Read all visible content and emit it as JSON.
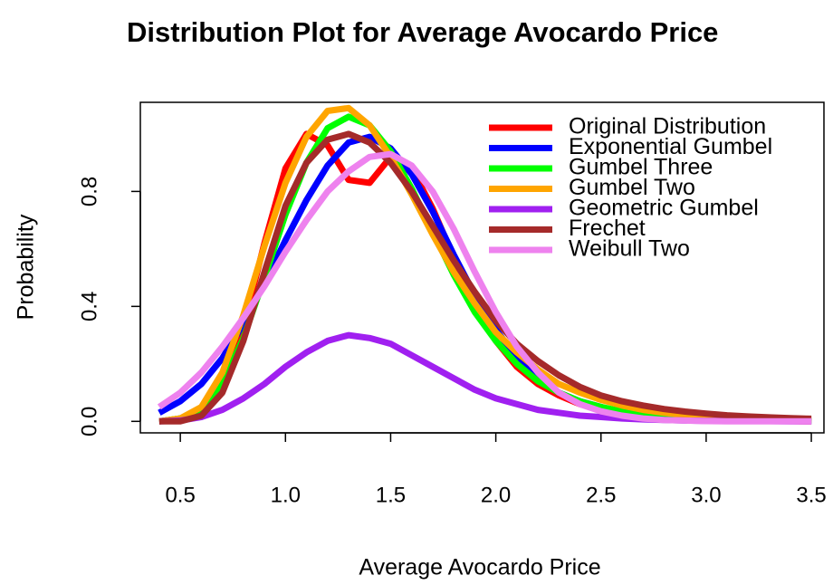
{
  "chart_data": {
    "type": "line",
    "title": "Distribution Plot for Average Avocardo Price",
    "x_label": "Average Avocardo Price",
    "y_label": "Probability",
    "x": [
      0.4,
      0.5,
      0.6,
      0.7,
      0.8,
      0.9,
      1.0,
      1.1,
      1.2,
      1.3,
      1.4,
      1.5,
      1.6,
      1.7,
      1.8,
      1.9,
      2.0,
      2.1,
      2.2,
      2.3,
      2.4,
      2.5,
      2.6,
      2.7,
      2.8,
      2.9,
      3.0,
      3.1,
      3.2,
      3.3,
      3.4,
      3.5
    ],
    "series": [
      {
        "name": "Original Distribution",
        "color": "#ff0000",
        "values": [
          0,
          0.01,
          0.03,
          0.12,
          0.33,
          0.62,
          0.88,
          1.0,
          0.96,
          0.84,
          0.83,
          0.92,
          0.88,
          0.74,
          0.57,
          0.41,
          0.28,
          0.19,
          0.13,
          0.09,
          0.06,
          0.04,
          0.03,
          0.02,
          0.015,
          0.01,
          0.01,
          0.005,
          0.003,
          0.002,
          0.001,
          0
        ]
      },
      {
        "name": "Exponential Gumbel",
        "color": "#0000ff",
        "values": [
          0.03,
          0.07,
          0.13,
          0.22,
          0.34,
          0.48,
          0.63,
          0.77,
          0.89,
          0.97,
          0.99,
          0.95,
          0.86,
          0.73,
          0.58,
          0.44,
          0.32,
          0.22,
          0.15,
          0.1,
          0.07,
          0.05,
          0.03,
          0.02,
          0.015,
          0.01,
          0.007,
          0.005,
          0.003,
          0.002,
          0.001,
          0.001
        ]
      },
      {
        "name": "Gumbel Three",
        "color": "#00ff00",
        "values": [
          0,
          0.01,
          0.04,
          0.13,
          0.29,
          0.5,
          0.72,
          0.9,
          1.02,
          1.06,
          1.03,
          0.94,
          0.81,
          0.66,
          0.51,
          0.38,
          0.28,
          0.2,
          0.14,
          0.1,
          0.07,
          0.05,
          0.035,
          0.025,
          0.018,
          0.012,
          0.009,
          0.006,
          0.004,
          0.003,
          0.002,
          0.001
        ]
      },
      {
        "name": "Gumbel Two",
        "color": "#ffa500",
        "values": [
          0,
          0.01,
          0.05,
          0.17,
          0.37,
          0.61,
          0.83,
          0.99,
          1.08,
          1.09,
          1.03,
          0.92,
          0.79,
          0.65,
          0.52,
          0.41,
          0.31,
          0.24,
          0.18,
          0.13,
          0.1,
          0.075,
          0.055,
          0.04,
          0.03,
          0.023,
          0.017,
          0.013,
          0.01,
          0.007,
          0.005,
          0.004
        ]
      },
      {
        "name": "Geometric Gumbel",
        "color": "#a020f0",
        "values": [
          0,
          0.003,
          0.015,
          0.04,
          0.08,
          0.13,
          0.19,
          0.24,
          0.28,
          0.3,
          0.29,
          0.27,
          0.23,
          0.19,
          0.15,
          0.11,
          0.08,
          0.06,
          0.04,
          0.03,
          0.02,
          0.015,
          0.01,
          0.007,
          0.005,
          0.003,
          0.002,
          0.002,
          0.001,
          0.001,
          0,
          0
        ]
      },
      {
        "name": "Frechet",
        "color": "#a52a2a",
        "values": [
          0,
          0,
          0.02,
          0.1,
          0.28,
          0.52,
          0.75,
          0.9,
          0.98,
          1.0,
          0.97,
          0.9,
          0.8,
          0.68,
          0.56,
          0.45,
          0.35,
          0.27,
          0.21,
          0.16,
          0.12,
          0.09,
          0.07,
          0.055,
          0.043,
          0.034,
          0.027,
          0.021,
          0.017,
          0.014,
          0.011,
          0.009
        ]
      },
      {
        "name": "Weibull Two",
        "color": "#ee82ee",
        "values": [
          0.05,
          0.1,
          0.17,
          0.26,
          0.36,
          0.47,
          0.59,
          0.7,
          0.8,
          0.87,
          0.92,
          0.93,
          0.89,
          0.8,
          0.67,
          0.52,
          0.38,
          0.26,
          0.17,
          0.1,
          0.06,
          0.035,
          0.02,
          0.01,
          0.005,
          0.003,
          0.001,
          0,
          0,
          0,
          0,
          0
        ]
      }
    ],
    "xlim": [
      0.31,
      3.56
    ],
    "ylim": [
      -0.04,
      1.11
    ],
    "xticks": [
      0.5,
      {
        "value": 1,
        "label": "1.0"
      },
      1.5,
      {
        "value": 2,
        "label": "2.0"
      },
      2.5,
      {
        "value": 3,
        "label": "3.0"
      },
      3.5
    ],
    "yticks": [
      {
        "value": 0,
        "label": "0.0"
      },
      0.4,
      0.8
    ],
    "legend": "top-right",
    "grid": false
  }
}
